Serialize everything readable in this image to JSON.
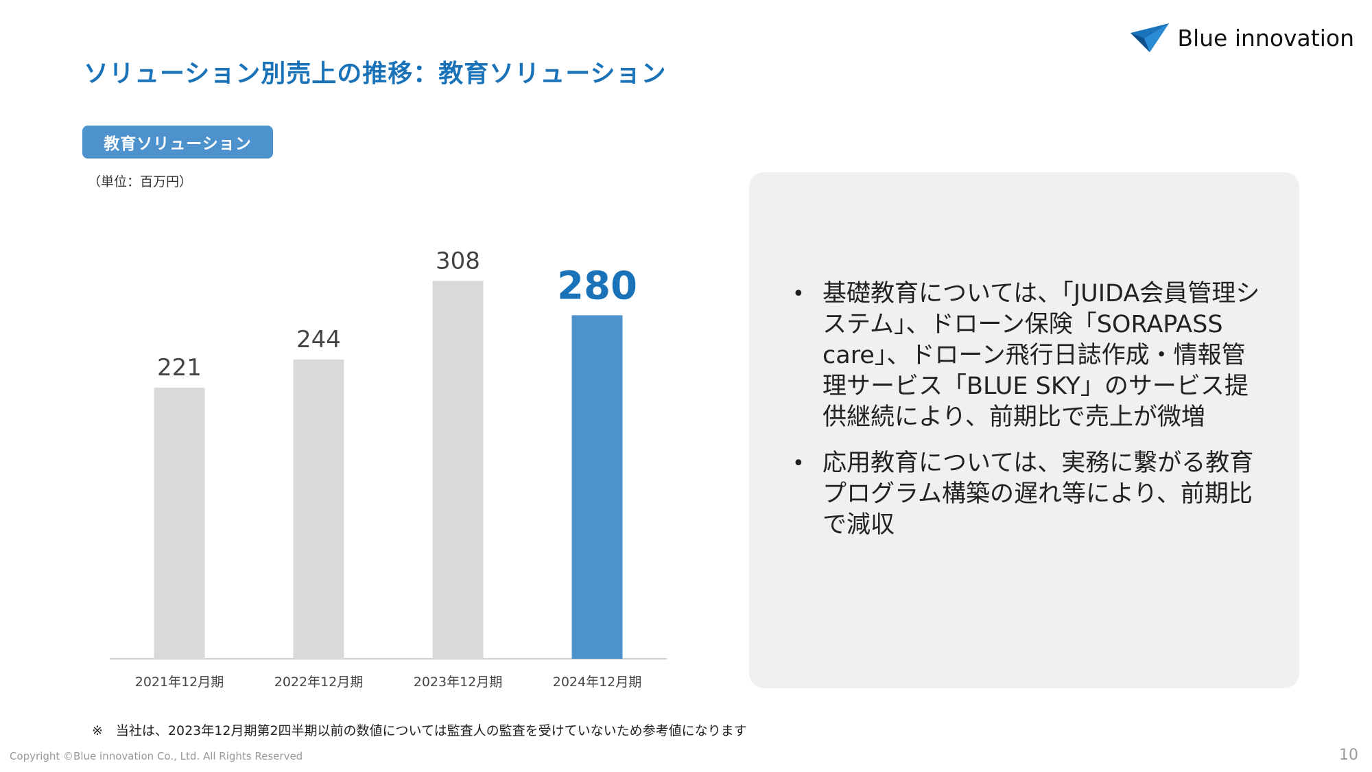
{
  "title": "ソリューション別売上の推移：教育ソリューション",
  "logo": {
    "text": "Blue innovation",
    "icon": "paper-plane-logo"
  },
  "badge": "教育ソリューション",
  "unit_label": "（単位：百万円）",
  "chart_data": {
    "type": "bar",
    "categories": [
      "2021年12月期",
      "2022年12月期",
      "2023年12月期",
      "2024年12月期"
    ],
    "values": [
      221,
      244,
      308,
      280
    ],
    "data_labels": [
      "221",
      "244",
      "308",
      "280"
    ],
    "highlight_index": 3,
    "colors": {
      "bar": "#d9d9d9",
      "highlight": "#4d92cd",
      "label": "#444444",
      "highlight_label": "#1a73b8",
      "axis": "#d0d0d0"
    },
    "ylim": [
      0,
      330
    ],
    "title": "",
    "xlabel": "",
    "ylabel": ""
  },
  "bullets": [
    "基礎教育については、「JUIDA会員管理システム」、ドローン保険「SORAPASS care」、ドローン飛行日誌作成・情報管理サービス「BLUE SKY」のサービス提供継続により、前期比で売上が微増",
    "応用教育については、実務に繋がる教育プログラム構築の遅れ等により、前期比で減収"
  ],
  "bullet_symbol": "•",
  "footnote": "※　当社は、2023年12月期第2四半期以前の数値については監査人の監査を受けていないため参考値になります",
  "copyright": "Copyright ©Blue innovation Co., Ltd. All Rights Reserved",
  "page_number": "10",
  "colors": {
    "accent": "#1a73b8",
    "panel": "#f0f0f0"
  }
}
